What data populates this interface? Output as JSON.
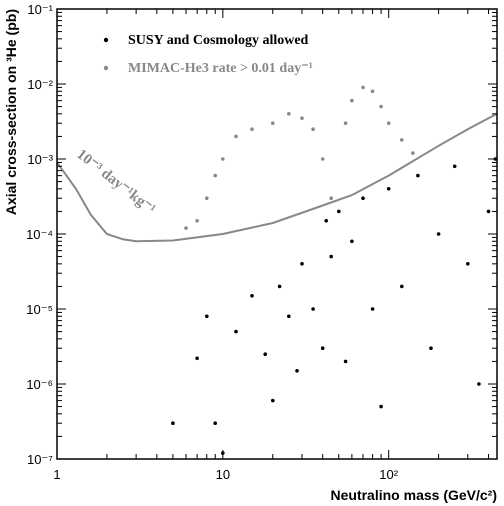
{
  "chart_data": {
    "type": "scatter",
    "title": "",
    "xlabel": "Neutralino mass (GeV/c²)",
    "ylabel": "Axial cross-section on ³He (pb)",
    "x_scale": "log",
    "y_scale": "log",
    "xlim": [
      1,
      450
    ],
    "ylim": [
      1e-07,
      0.1
    ],
    "grid": false,
    "legend_position": "top-left",
    "x_ticks": [
      {
        "value": 1,
        "label": "1"
      },
      {
        "value": 10,
        "label": "10"
      },
      {
        "value": 100,
        "label": "10²"
      }
    ],
    "y_ticks": [
      {
        "value": 1e-07,
        "label": "10⁻⁷"
      },
      {
        "value": 1e-06,
        "label": "10⁻⁶"
      },
      {
        "value": 1e-05,
        "label": "10⁻⁵"
      },
      {
        "value": 0.0001,
        "label": "10⁻⁴"
      },
      {
        "value": 0.001,
        "label": "10⁻³"
      },
      {
        "value": 0.01,
        "label": "10⁻²"
      },
      {
        "value": 0.1,
        "label": "10⁻¹"
      }
    ],
    "series": [
      {
        "name": "SUSY and Cosmology allowed",
        "color": "#000000",
        "points": [
          [
            5,
            3e-07
          ],
          [
            7,
            2.2e-06
          ],
          [
            8,
            8e-06
          ],
          [
            9,
            3e-07
          ],
          [
            10,
            1.2e-07
          ],
          [
            12,
            5e-06
          ],
          [
            15,
            1.5e-05
          ],
          [
            18,
            2.5e-06
          ],
          [
            20,
            6e-07
          ],
          [
            22,
            2e-05
          ],
          [
            25,
            8e-06
          ],
          [
            28,
            1.5e-06
          ],
          [
            30,
            4e-05
          ],
          [
            35,
            1e-05
          ],
          [
            40,
            3e-06
          ],
          [
            42,
            0.00015
          ],
          [
            45,
            5e-05
          ],
          [
            50,
            0.0002
          ],
          [
            55,
            2e-06
          ],
          [
            60,
            8e-05
          ],
          [
            70,
            0.0003
          ],
          [
            80,
            1e-05
          ],
          [
            90,
            5e-07
          ],
          [
            100,
            0.0004
          ],
          [
            120,
            2e-05
          ],
          [
            150,
            0.0006
          ],
          [
            180,
            3e-06
          ],
          [
            200,
            0.0001
          ],
          [
            250,
            0.0008
          ],
          [
            300,
            4e-05
          ],
          [
            350,
            1e-06
          ],
          [
            400,
            0.0002
          ],
          [
            440,
            0.001
          ]
        ]
      },
      {
        "name": "MIMAC-He3 rate > 0.01 day⁻¹",
        "color": "#888888",
        "points": [
          [
            6,
            0.00012
          ],
          [
            7,
            0.00015
          ],
          [
            8,
            0.0003
          ],
          [
            9,
            0.0006
          ],
          [
            10,
            0.001
          ],
          [
            12,
            0.002
          ],
          [
            15,
            0.0025
          ],
          [
            20,
            0.003
          ],
          [
            25,
            0.004
          ],
          [
            30,
            0.0035
          ],
          [
            35,
            0.0025
          ],
          [
            40,
            0.001
          ],
          [
            45,
            0.0003
          ],
          [
            55,
            0.003
          ],
          [
            60,
            0.006
          ],
          [
            70,
            0.009
          ],
          [
            80,
            0.008
          ],
          [
            90,
            0.005
          ],
          [
            100,
            0.003
          ],
          [
            120,
            0.0018
          ],
          [
            140,
            0.0012
          ]
        ]
      }
    ],
    "curve": {
      "label": "10⁻³ day⁻¹kg⁻¹",
      "color": "#888888",
      "points": [
        [
          1,
          0.0009
        ],
        [
          1.3,
          0.0004
        ],
        [
          1.6,
          0.00018
        ],
        [
          2,
          0.0001
        ],
        [
          2.5,
          8.5e-05
        ],
        [
          3,
          8e-05
        ],
        [
          5,
          8.2e-05
        ],
        [
          10,
          0.0001
        ],
        [
          20,
          0.00014
        ],
        [
          40,
          0.00024
        ],
        [
          60,
          0.00033
        ],
        [
          100,
          0.0006
        ],
        [
          200,
          0.0015
        ],
        [
          300,
          0.0025
        ],
        [
          450,
          0.004
        ]
      ]
    }
  }
}
